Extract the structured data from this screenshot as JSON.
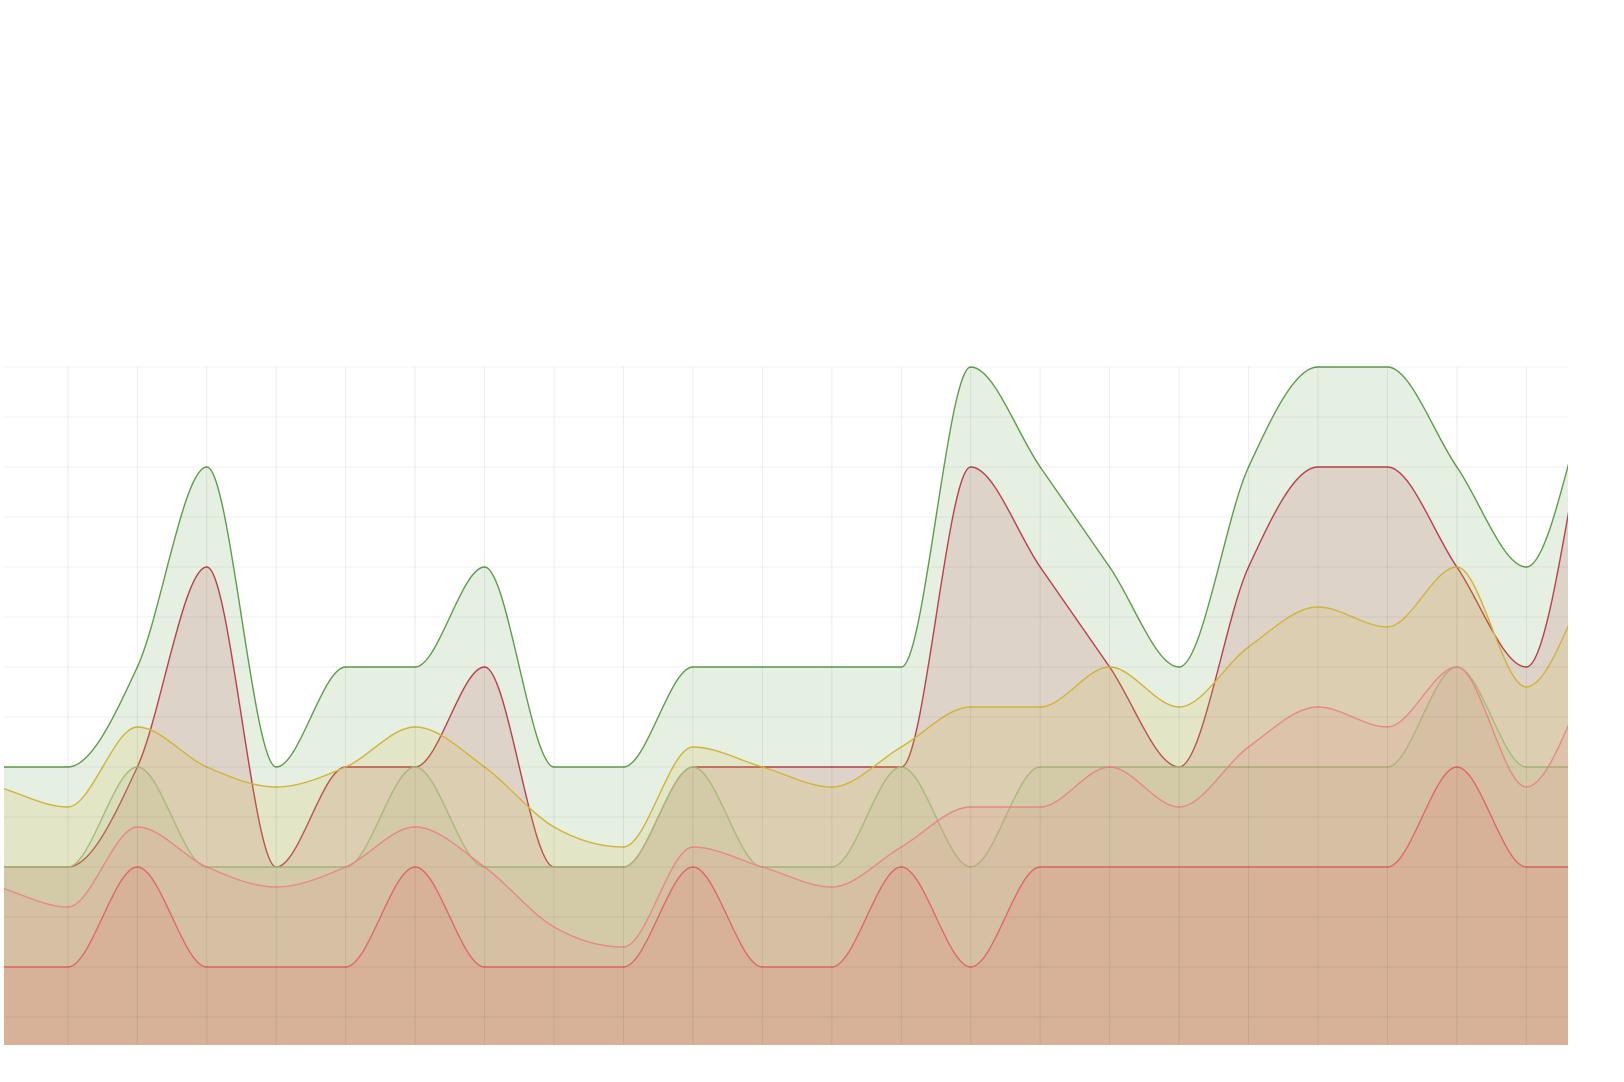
{
  "chart_data": {
    "type": "area",
    "grid": true,
    "x": [
      0,
      1,
      2,
      3,
      4,
      5,
      6,
      7,
      8,
      9,
      10,
      11,
      12,
      13,
      14,
      15,
      16,
      17,
      18,
      19,
      20,
      21,
      22,
      23
    ],
    "xlim": [
      0.08,
      22.6
    ],
    "xticks": [
      1,
      2,
      3,
      4,
      5,
      6,
      7,
      8,
      9,
      10,
      11,
      12,
      13,
      14,
      15,
      16,
      17,
      18,
      19,
      20,
      21,
      22
    ],
    "ylim": [
      0.22,
      10
    ],
    "yticks": [
      0.5,
      1,
      1.5,
      2,
      2.5,
      3,
      3.5,
      4,
      4.5,
      5,
      5.5,
      6,
      6.5,
      7
    ],
    "series": [
      {
        "color": "#5e9e48",
        "values": [
          3,
          3,
          4,
          6,
          3,
          4,
          4,
          5,
          3,
          3,
          4,
          4,
          4,
          4,
          7,
          6,
          5,
          4,
          6,
          7,
          7,
          6,
          5,
          7
        ]
      },
      {
        "color": "#b9424a",
        "values": [
          2,
          2,
          3,
          5,
          2,
          3,
          3,
          4,
          2,
          2,
          3,
          3,
          3,
          3,
          6,
          5,
          4,
          3,
          5,
          6,
          6,
          5,
          4,
          7
        ]
      },
      {
        "color": "#d2b43a",
        "values": [
          2.8,
          2.6,
          3.4,
          3.0,
          2.8,
          3.0,
          3.4,
          3.0,
          2.4,
          2.2,
          3.2,
          3.0,
          2.8,
          3.2,
          3.6,
          3.6,
          4.0,
          3.6,
          4.2,
          4.6,
          4.4,
          5.0,
          3.8,
          5.0
        ]
      },
      {
        "color": "#a9b97a",
        "values": [
          2,
          2,
          3,
          2,
          2,
          2,
          3,
          2,
          2,
          2,
          3,
          2,
          2,
          3,
          2,
          3,
          3,
          3,
          3,
          3,
          3,
          4,
          3,
          3
        ]
      },
      {
        "color": "#e88888",
        "values": [
          1.8,
          1.6,
          2.4,
          2.0,
          1.8,
          2.0,
          2.4,
          2.0,
          1.4,
          1.2,
          2.2,
          2.0,
          1.8,
          2.2,
          2.6,
          2.6,
          3.0,
          2.6,
          3.2,
          3.6,
          3.4,
          4.0,
          2.8,
          4.0
        ]
      },
      {
        "color": "#e06868",
        "values": [
          1,
          1,
          2,
          1,
          1,
          1,
          2,
          1,
          1,
          1,
          2,
          1,
          1,
          2,
          1,
          2,
          2,
          2,
          2,
          2,
          2,
          3,
          2,
          2
        ]
      }
    ]
  }
}
